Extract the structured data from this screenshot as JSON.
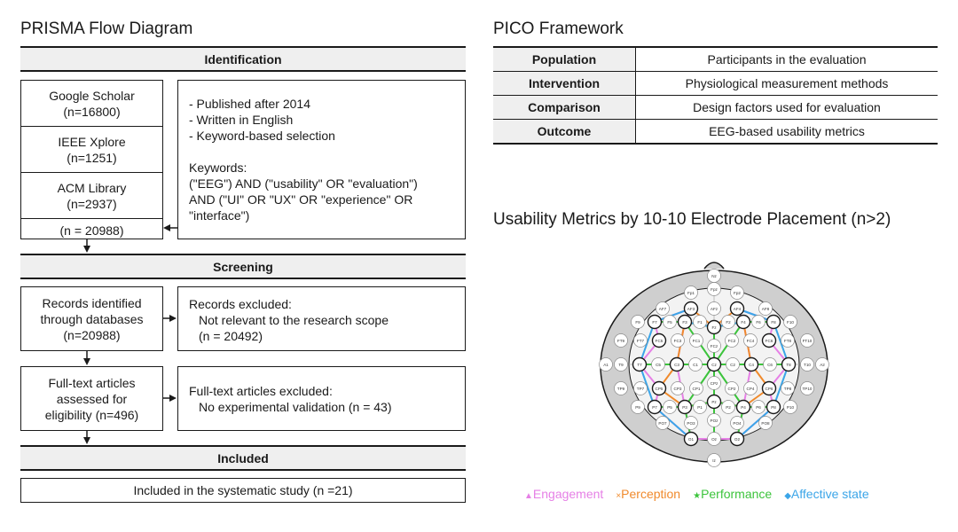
{
  "prisma": {
    "title": "PRISMA Flow Diagram",
    "identification": {
      "label": "Identification",
      "sources": [
        {
          "name": "Google Scholar",
          "count": "(n=16800)"
        },
        {
          "name": "IEEE Xplore",
          "count": "(n=1251)"
        },
        {
          "name": "ACM Library",
          "count": "(n=2937)"
        }
      ],
      "total": "(n = 20988)",
      "criteria": [
        "- Published after 2014",
        "- Written in English",
        "- Keyword-based selection"
      ],
      "keywords_label": "Keywords:",
      "keywords": [
        "(\"EEG\") AND (\"usability\" OR \"evaluation\")",
        "AND (\"UI\" OR \"UX\" OR \"experience\" OR",
        "\"interface\")"
      ]
    },
    "screening": {
      "label": "Screening",
      "records_identified": "Records identified\nthrough databases\n(n=20988)",
      "records_excluded_title": "Records excluded:",
      "records_excluded_reason": "Not relevant to the research scope",
      "records_excluded_count": "(n = 20492)",
      "fulltext_assessed": "Full-text articles\nassessed for\neligibility (n=496)",
      "fulltext_excluded_title": "Full-text articles excluded:",
      "fulltext_excluded_reason": "No experimental validation (n = 43)"
    },
    "included": {
      "label": "Included",
      "text": "Included in the systematic study (n =21)"
    }
  },
  "pico": {
    "title": "PICO Framework",
    "rows": [
      {
        "key": "Population",
        "value": "Participants in the evaluation"
      },
      {
        "key": "Intervention",
        "value": "Physiological measurement methods"
      },
      {
        "key": "Comparison",
        "value": "Design factors used for evaluation"
      },
      {
        "key": "Outcome",
        "value": "EEG-based usability metrics"
      }
    ]
  },
  "eeg_map": {
    "title": "Usability Metrics by 10-10 Electrode Placement (n>2)",
    "legend": [
      {
        "symbol": "▲",
        "label": "Engagement",
        "color": "#e680e6"
      },
      {
        "symbol": "×",
        "label": "Perception",
        "color": "#f08a2c"
      },
      {
        "symbol": "★",
        "label": "Performance",
        "color": "#3cc43c"
      },
      {
        "symbol": "◆",
        "label": "Affective state",
        "color": "#3ba5e8"
      }
    ],
    "electrodes": [
      "Nz",
      "Fpz",
      "AFz",
      "Fz",
      "FCz",
      "Cz",
      "CPz",
      "Pz",
      "POz",
      "Oz",
      "Iz",
      "Fp1",
      "Fp2",
      "AF7",
      "AF3",
      "AF4",
      "AF8",
      "F9",
      "F7",
      "F5",
      "F3",
      "F1",
      "F2",
      "F4",
      "F6",
      "F8",
      "F10",
      "FT9",
      "FT7",
      "FC5",
      "FC3",
      "FC1",
      "FC2",
      "FC4",
      "FC6",
      "FT8",
      "FT10",
      "A1",
      "T9",
      "T7",
      "C5",
      "C3",
      "C1",
      "C2",
      "C4",
      "C6",
      "T8",
      "T10",
      "A2",
      "TP9",
      "TP7",
      "CP5",
      "CP3",
      "CP1",
      "CP2",
      "CP4",
      "CP6",
      "TP8",
      "TP10",
      "P9",
      "P7",
      "P5",
      "P3",
      "P1",
      "P2",
      "P4",
      "P6",
      "P8",
      "P10",
      "PO7",
      "PO3",
      "PO4",
      "PO8",
      "O1",
      "O2"
    ]
  }
}
